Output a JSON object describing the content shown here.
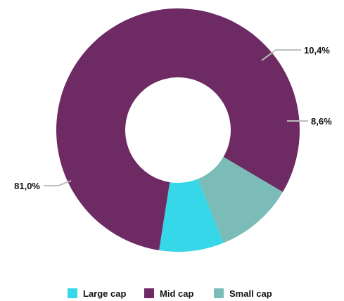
{
  "chart_data": {
    "type": "pie",
    "donut": true,
    "series": [
      {
        "name": "Large cap",
        "value": 8.6,
        "label": "8,6%",
        "color": "#36d7e8"
      },
      {
        "name": "Mid cap",
        "value": 81.0,
        "label": "81,0%",
        "color": "#6d2a63"
      },
      {
        "name": "Small cap",
        "value": 10.4,
        "label": "10,4%",
        "color": "#7bbcb8"
      }
    ],
    "legend_placement": "bottom-center",
    "leader_line_color": "#bdbdbd"
  }
}
